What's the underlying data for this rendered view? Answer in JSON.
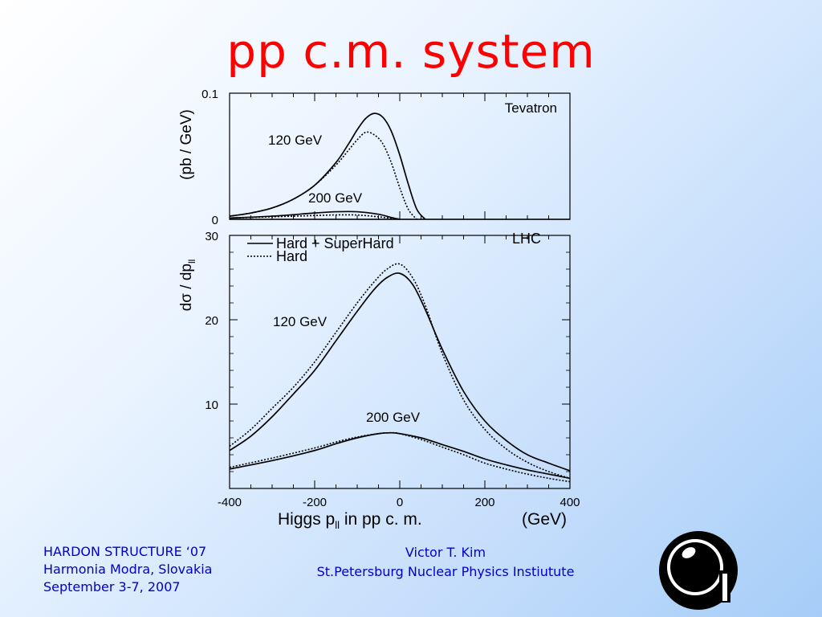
{
  "slide": {
    "title": "pp c.m. system"
  },
  "footer": {
    "left": [
      "HARDON STRUCTURE ‘07",
      "Harmonia Modra, Slovakia",
      "September 3-7, 2007"
    ],
    "center": [
      "Victor T.  Kim",
      "St.Petersburg Nuclear Physics Instiutute"
    ]
  },
  "logo": {
    "icon": "institute-logo-icon"
  },
  "figure": {
    "ylabel_top": "(pb / GeV)",
    "ylabel_bottom_main": "dσ / dp",
    "ylabel_bottom_sub": "ll",
    "xlabel_main": "Higgs  p",
    "xlabel_sub": "ll",
    "xlabel_rest": "  in  pp  c. m.",
    "xlabel_unit": "(GeV)"
  },
  "chart_data": [
    {
      "type": "line",
      "panel": "top",
      "title": "Tevatron",
      "xlim": [
        -400,
        400
      ],
      "ylim": [
        0,
        0.1
      ],
      "yticks": [
        {
          "value": 0,
          "label": "0"
        },
        {
          "value": 0.1,
          "label": "0.1"
        }
      ],
      "annotations": [
        "120 GeV",
        "200 GeV"
      ],
      "series": [
        {
          "curve": "120 GeV",
          "style": "solid",
          "x": [
            -400,
            -350,
            -300,
            -250,
            -200,
            -150,
            -120,
            -100,
            -80,
            -60,
            -40,
            -20,
            0,
            20,
            40,
            60
          ],
          "y": [
            0.0025,
            0.005,
            0.009,
            0.016,
            0.027,
            0.045,
            0.06,
            0.071,
            0.08,
            0.084,
            0.081,
            0.07,
            0.051,
            0.028,
            0.008,
            0
          ]
        },
        {
          "curve": "120 GeV",
          "style": "dotted",
          "x": [
            -400,
            -350,
            -300,
            -250,
            -200,
            -150,
            -120,
            -100,
            -80,
            -60,
            -40,
            -20,
            0,
            20,
            40
          ],
          "y": [
            0.0025,
            0.005,
            0.009,
            0.016,
            0.027,
            0.043,
            0.055,
            0.063,
            0.069,
            0.067,
            0.06,
            0.045,
            0.025,
            0.008,
            0
          ]
        },
        {
          "curve": "200 GeV",
          "style": "solid",
          "x": [
            -400,
            -300,
            -200,
            -150,
            -100,
            -50,
            -20,
            0
          ],
          "y": [
            0.001,
            0.0025,
            0.005,
            0.006,
            0.006,
            0.004,
            0.0015,
            0
          ]
        },
        {
          "curve": "200 GeV",
          "style": "dotted",
          "x": [
            -400,
            -300,
            -200,
            -150,
            -100,
            -50,
            -20,
            0
          ],
          "y": [
            0.001,
            0.002,
            0.003,
            0.0035,
            0.0034,
            0.002,
            0.0008,
            0
          ]
        }
      ]
    },
    {
      "type": "line",
      "panel": "bottom",
      "title": "LHC",
      "xlim": [
        -400,
        400
      ],
      "ylim": [
        0,
        30
      ],
      "xticks": [
        -400,
        -200,
        0,
        200,
        400
      ],
      "yticks": [
        10,
        20,
        30
      ],
      "legend": [
        {
          "label": "Hard + SuperHard",
          "style": "solid"
        },
        {
          "label": "Hard",
          "style": "dotted"
        }
      ],
      "legend_position": "top-left",
      "annotations": [
        "120 GeV",
        "200 GeV"
      ],
      "series": [
        {
          "name": "Hard + SuperHard",
          "curve": "120 GeV",
          "style": "solid",
          "x": [
            -400,
            -350,
            -300,
            -250,
            -200,
            -150,
            -100,
            -60,
            -30,
            0,
            30,
            60,
            100,
            150,
            200,
            250,
            300,
            350,
            400
          ],
          "y": [
            4.5,
            6.2,
            8.5,
            11.2,
            14.0,
            17.5,
            21.0,
            23.6,
            25.0,
            25.5,
            24.2,
            21.2,
            16.5,
            11.5,
            8.0,
            5.7,
            4.0,
            3.0,
            2.1
          ]
        },
        {
          "name": "Hard",
          "curve": "120 GeV",
          "style": "dotted",
          "x": [
            -400,
            -350,
            -300,
            -250,
            -200,
            -150,
            -100,
            -60,
            -30,
            0,
            30,
            60,
            100,
            150,
            200,
            250,
            300,
            350,
            400
          ],
          "y": [
            5.0,
            7.0,
            9.5,
            12.0,
            15.0,
            18.5,
            22.0,
            24.5,
            26.0,
            26.6,
            25.0,
            21.7,
            16.0,
            10.5,
            7.0,
            4.7,
            3.1,
            2.0,
            1.2
          ]
        },
        {
          "name": "Hard + SuperHard",
          "curve": "200 GeV",
          "style": "solid",
          "x": [
            -400,
            -300,
            -200,
            -150,
            -100,
            -50,
            -20,
            0,
            50,
            100,
            150,
            200,
            250,
            300,
            350,
            400
          ],
          "y": [
            2.3,
            3.3,
            4.5,
            5.3,
            6.0,
            6.5,
            6.6,
            6.5,
            6.0,
            5.2,
            4.4,
            3.5,
            2.8,
            2.2,
            1.7,
            1.2
          ]
        },
        {
          "name": "Hard",
          "curve": "200 GeV",
          "style": "dotted",
          "x": [
            -400,
            -300,
            -200,
            -150,
            -100,
            -50,
            -20,
            0,
            50,
            100,
            150,
            200,
            250,
            300,
            350,
            400
          ],
          "y": [
            2.5,
            3.6,
            4.8,
            5.5,
            6.1,
            6.5,
            6.6,
            6.5,
            5.8,
            4.9,
            4.0,
            3.0,
            2.3,
            1.7,
            1.2,
            0.8
          ]
        }
      ]
    }
  ]
}
